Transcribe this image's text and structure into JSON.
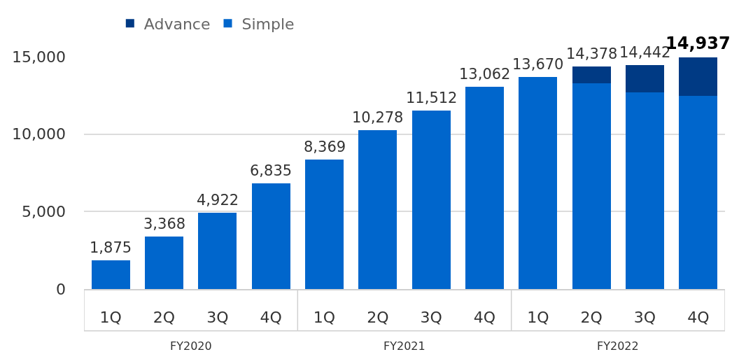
{
  "chart_data": {
    "type": "bar",
    "stacked": true,
    "categories": [
      "1Q",
      "2Q",
      "3Q",
      "4Q",
      "1Q",
      "2Q",
      "3Q",
      "4Q",
      "1Q",
      "2Q",
      "3Q",
      "4Q"
    ],
    "series": [
      {
        "name": "Simple",
        "color": "#0066cc",
        "values": [
          1875,
          3368,
          4922,
          6835,
          8369,
          10278,
          11512,
          13062,
          13670,
          13300,
          12700,
          12460
        ]
      },
      {
        "name": "Advance",
        "color": "#003a84",
        "values": [
          null,
          null,
          null,
          null,
          null,
          null,
          null,
          null,
          null,
          1078,
          1742,
          2477
        ]
      }
    ],
    "totals": [
      "1,875",
      "3,368",
      "4,922",
      "6,835",
      "8,369",
      "10,278",
      "11,512",
      "13,062",
      "13,670",
      "14,378",
      "14,442",
      "14,937"
    ],
    "annotations": [
      "FY2020",
      "FY2021",
      "FY2022"
    ],
    "ylim": [
      0,
      15000
    ],
    "yticks": [
      {
        "value": 0,
        "label": "0"
      },
      {
        "value": 5000,
        "label": "5,000"
      },
      {
        "value": 10000,
        "label": "10,000"
      },
      {
        "value": 15000,
        "label": "15,000"
      }
    ],
    "grid": "y",
    "legend": "top left"
  }
}
